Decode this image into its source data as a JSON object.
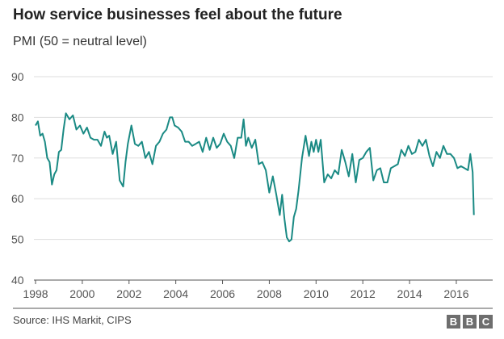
{
  "chart_data": {
    "type": "line",
    "title": "How service businesses feel about the future",
    "subtitle": "PMI (50 = neutral level)",
    "xlabel": "",
    "ylabel": "",
    "ylim": [
      40,
      90
    ],
    "xlim": [
      1998,
      2016.9
    ],
    "yticks": [
      "40",
      "50",
      "60",
      "70",
      "80",
      "90"
    ],
    "xticks": [
      "1998",
      "2000",
      "2002",
      "2004",
      "2006",
      "2008",
      "2010",
      "2012",
      "2014",
      "2016"
    ],
    "grid": "horizontal",
    "line_color": "#1a8a84",
    "series": [
      {
        "x": [
          1998.0,
          1998.1,
          1998.2,
          1998.3,
          1998.4,
          1998.5,
          1998.6,
          1998.7,
          1998.8,
          1998.9,
          1999.0,
          1999.1,
          1999.2,
          1999.3,
          1999.45,
          1999.6,
          1999.75,
          1999.9,
          2000.05,
          2000.2,
          2000.35,
          2000.5,
          2000.65,
          2000.8,
          2000.95,
          2001.05,
          2001.15,
          2001.3,
          2001.45,
          2001.6,
          2001.75,
          2001.85,
          2001.95,
          2002.1,
          2002.25,
          2002.4,
          2002.55,
          2002.7,
          2002.85,
          2003.0,
          2003.15,
          2003.3,
          2003.45,
          2003.6,
          2003.75,
          2003.85,
          2003.95,
          2004.1,
          2004.25,
          2004.4,
          2004.55,
          2004.7,
          2004.85,
          2005.0,
          2005.15,
          2005.3,
          2005.45,
          2005.6,
          2005.75,
          2005.9,
          2006.05,
          2006.2,
          2006.35,
          2006.5,
          2006.65,
          2006.8,
          2006.9,
          2007.0,
          2007.1,
          2007.25,
          2007.4,
          2007.55,
          2007.7,
          2007.85,
          2008.0,
          2008.15,
          2008.3,
          2008.45,
          2008.55,
          2008.65,
          2008.75,
          2008.85,
          2008.95,
          2009.05,
          2009.15,
          2009.25,
          2009.4,
          2009.55,
          2009.7,
          2009.8,
          2009.9,
          2010.0,
          2010.1,
          2010.2,
          2010.35,
          2010.5,
          2010.65,
          2010.8,
          2010.95,
          2011.1,
          2011.25,
          2011.4,
          2011.55,
          2011.7,
          2011.85,
          2012.0,
          2012.15,
          2012.3,
          2012.45,
          2012.6,
          2012.75,
          2012.9,
          2013.05,
          2013.2,
          2013.35,
          2013.5,
          2013.65,
          2013.8,
          2013.95,
          2014.1,
          2014.25,
          2014.4,
          2014.55,
          2014.7,
          2014.85,
          2015.0,
          2015.15,
          2015.3,
          2015.45,
          2015.6,
          2015.75,
          2015.9,
          2016.05,
          2016.2,
          2016.35,
          2016.5,
          2016.6,
          2016.7,
          2016.75
        ],
        "y": [
          78,
          79,
          75.5,
          76,
          74,
          70,
          69,
          63.5,
          66,
          67,
          71.5,
          72,
          77,
          81,
          79.5,
          80.5,
          77,
          78,
          76,
          77.5,
          75,
          74.5,
          74.5,
          73,
          76.5,
          75,
          75.5,
          71,
          74,
          64.5,
          63,
          69,
          73.5,
          78,
          73.5,
          73,
          74,
          70,
          71.5,
          68.5,
          73,
          74,
          76,
          77,
          80,
          80,
          78,
          77.5,
          76.5,
          74,
          74,
          73,
          73.5,
          74,
          71.5,
          75,
          72,
          75,
          72.5,
          73.5,
          76,
          74,
          73,
          70,
          75,
          75,
          79.5,
          73,
          75,
          72.5,
          74.5,
          68.5,
          69,
          67,
          61.5,
          65.5,
          61,
          56,
          61,
          55,
          50.5,
          49.5,
          50,
          55.5,
          57.5,
          62,
          70,
          75.5,
          70.5,
          74,
          71.5,
          74.5,
          71.5,
          74.5,
          64,
          66,
          65,
          67,
          66,
          72,
          69,
          65.5,
          71,
          64,
          69.5,
          70,
          71.5,
          72.5,
          64.5,
          67,
          67.5,
          64,
          64,
          67.5,
          68,
          68.5,
          72,
          70.5,
          73,
          71,
          71.5,
          74.5,
          73,
          74.5,
          70.5,
          68,
          71.5,
          70,
          73,
          71,
          71,
          70,
          67.5,
          68,
          67.5,
          67,
          71,
          66.5,
          56
        ]
      }
    ],
    "source": "Source: IHS Markit, CIPS",
    "logo": "BBC"
  }
}
